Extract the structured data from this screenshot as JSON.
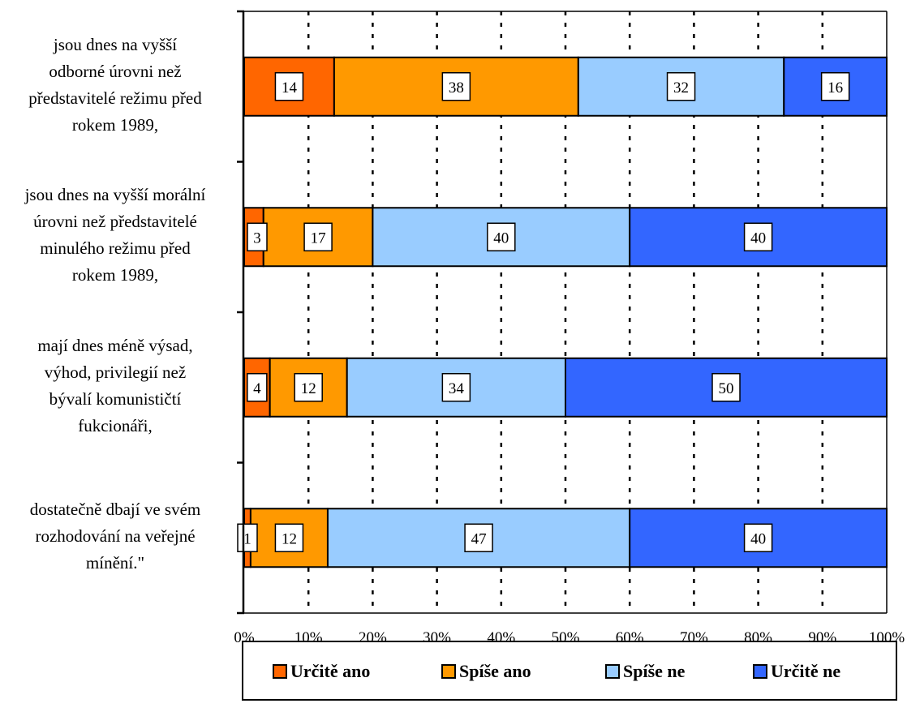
{
  "chart_data": {
    "type": "bar",
    "orientation": "horizontal",
    "stacked": true,
    "categories": [
      "jsou dnes na vyšší odborné úrovni než představitelé režimu před rokem 1989,",
      "jsou dnes na vyšší morální úrovni než představitelé minulého režimu před rokem 1989,",
      "mají dnes méně výsad, výhod, privilegií než bývalí komunističtí fukcionáři,",
      "dostatečně dbají ve svém rozhodování na veřejné mínění.\""
    ],
    "category_lines": [
      [
        "jsou dnes na vyšší",
        "odborné úrovni než",
        "představitelé režimu před",
        "rokem 1989,"
      ],
      [
        "jsou dnes na vyšší morální",
        "úrovni než představitelé",
        "minulého režimu před",
        "rokem 1989,"
      ],
      [
        "mají dnes méně výsad,",
        "výhod, privilegií než",
        "bývalí komunističtí",
        "fukcionáři,"
      ],
      [
        "dostatečně dbají ve svém",
        "rozhodování na veřejné",
        "mínění.\""
      ]
    ],
    "series": [
      {
        "name": "Určitě ano",
        "color": "#ff6600",
        "values": [
          14,
          3,
          4,
          1
        ]
      },
      {
        "name": "Spíše ano",
        "color": "#ff9900",
        "values": [
          38,
          17,
          12,
          12
        ]
      },
      {
        "name": "Spíše ne",
        "color": "#99ccff",
        "values": [
          32,
          40,
          34,
          47
        ]
      },
      {
        "name": "Určitě ne",
        "color": "#3366ff",
        "values": [
          16,
          40,
          50,
          40
        ]
      }
    ],
    "x_ticks": [
      "0%",
      "10%",
      "20%",
      "30%",
      "40%",
      "50%",
      "60%",
      "70%",
      "80%",
      "90%",
      "100%"
    ],
    "xlim": [
      0,
      100
    ],
    "grid": "vertical dashed",
    "legend_position": "bottom"
  }
}
